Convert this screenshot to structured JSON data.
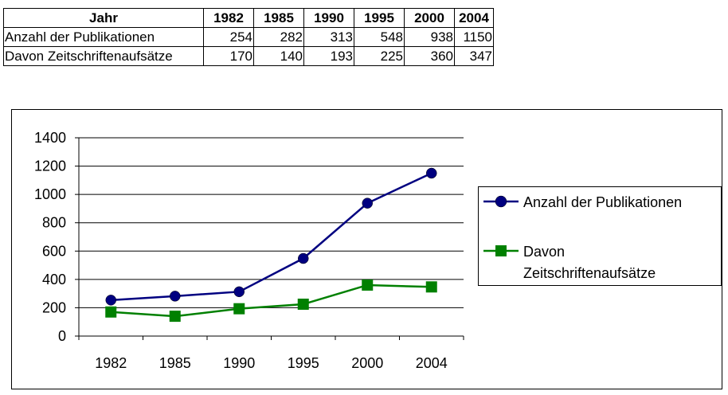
{
  "table": {
    "header": [
      "Jahr",
      "1982",
      "1985",
      "1990",
      "1995",
      "2000",
      "2004"
    ],
    "rows": [
      {
        "label": "Anzahl der Publikationen",
        "values": [
          "254",
          "282",
          "313",
          "548",
          "938",
          "1150"
        ]
      },
      {
        "label": "Davon Zeitschriftenaufsätze",
        "values": [
          "170",
          "140",
          "193",
          "225",
          "360",
          "347"
        ]
      }
    ]
  },
  "chart_data": {
    "type": "line",
    "categories": [
      "1982",
      "1985",
      "1990",
      "1995",
      "2000",
      "2004"
    ],
    "series": [
      {
        "name": "Anzahl der Publikationen",
        "values": [
          254,
          282,
          313,
          548,
          938,
          1150
        ],
        "color": "#000080",
        "marker": "circle"
      },
      {
        "name": "Davon Zeitschriftenaufsätze",
        "values": [
          170,
          140,
          193,
          225,
          360,
          347
        ],
        "color": "#008000",
        "marker": "square"
      }
    ],
    "ylim": [
      0,
      1400
    ],
    "yticks": [
      "0",
      "200",
      "400",
      "600",
      "800",
      "1000",
      "1200",
      "1400"
    ],
    "grid": true,
    "legend": {
      "position": "right",
      "entries": [
        {
          "lines": [
            "Anzahl der Publikationen"
          ]
        },
        {
          "lines": [
            "Davon",
            "Zeitschriftenaufsätze"
          ]
        }
      ]
    }
  }
}
